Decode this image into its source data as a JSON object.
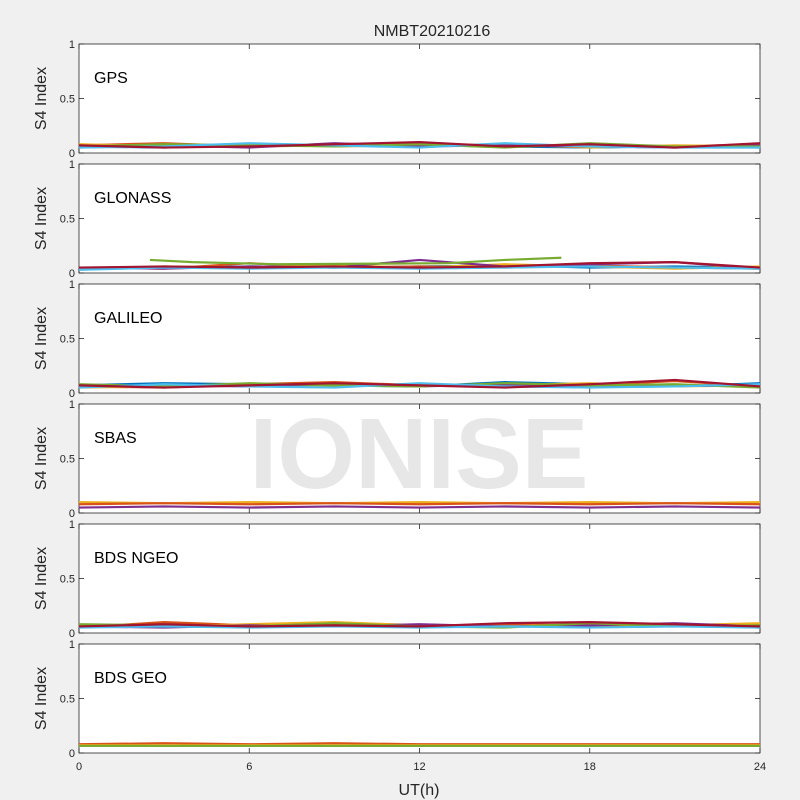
{
  "chart_data": {
    "type": "line",
    "title": "NMBT20210216",
    "xlabel": "UT(h)",
    "ylabel": "S4 Index",
    "xlim": [
      0,
      24
    ],
    "ylim": [
      0,
      1
    ],
    "xticks": [
      0,
      6,
      12,
      18,
      24
    ],
    "yticks": [
      0,
      0.5,
      1
    ],
    "xtick_labels": [
      "0",
      "6",
      "12",
      "18",
      "24"
    ],
    "ytick_labels": [
      "0",
      "0.5",
      "1"
    ],
    "grid": false,
    "watermark": "IONISE",
    "series_colors": [
      "#0072bd",
      "#d95319",
      "#edb120",
      "#7e2f8e",
      "#77ac30",
      "#4dbeee",
      "#a2142f"
    ],
    "panels": [
      {
        "label": "GPS",
        "series": [
          {
            "color": "#0072bd",
            "x": [
              0,
              3,
              6,
              9,
              12,
              15,
              18,
              21,
              24
            ],
            "values": [
              0.06,
              0.05,
              0.07,
              0.08,
              0.07,
              0.06,
              0.05,
              0.06,
              0.05
            ]
          },
          {
            "color": "#d95319",
            "x": [
              0,
              3,
              6,
              9,
              12,
              15,
              18,
              21,
              24
            ],
            "values": [
              0.07,
              0.09,
              0.06,
              0.07,
              0.09,
              0.06,
              0.07,
              0.06,
              0.08
            ]
          },
          {
            "color": "#edb120",
            "x": [
              0,
              3,
              6,
              9,
              12,
              15,
              18,
              21,
              24
            ],
            "values": [
              0.08,
              0.06,
              0.08,
              0.06,
              0.07,
              0.08,
              0.05,
              0.07,
              0.06
            ]
          },
          {
            "color": "#7e2f8e",
            "x": [
              0,
              3,
              6,
              9,
              12,
              15,
              18,
              21,
              24
            ],
            "values": [
              0.05,
              0.07,
              0.05,
              0.09,
              0.06,
              0.07,
              0.06,
              0.05,
              0.07
            ]
          },
          {
            "color": "#77ac30",
            "x": [
              0,
              3,
              6,
              9,
              12,
              15,
              18,
              21,
              24
            ],
            "values": [
              0.06,
              0.08,
              0.07,
              0.06,
              0.08,
              0.05,
              0.09,
              0.06,
              0.06
            ]
          },
          {
            "color": "#4dbeee",
            "x": [
              0,
              3,
              6,
              9,
              12,
              15,
              18,
              21,
              24
            ],
            "values": [
              0.05,
              0.06,
              0.09,
              0.07,
              0.05,
              0.09,
              0.06,
              0.05,
              0.05
            ]
          },
          {
            "color": "#a2142f",
            "x": [
              0,
              3,
              6,
              9,
              12,
              15,
              18,
              21,
              24
            ],
            "values": [
              0.07,
              0.05,
              0.06,
              0.08,
              0.1,
              0.06,
              0.08,
              0.05,
              0.09
            ]
          }
        ]
      },
      {
        "label": "GLONASS",
        "series": [
          {
            "color": "#0072bd",
            "x": [
              0,
              3,
              6,
              9,
              12,
              15,
              18,
              21,
              24
            ],
            "values": [
              0.04,
              0.05,
              0.06,
              0.05,
              0.06,
              0.07,
              0.05,
              0.06,
              0.05
            ]
          },
          {
            "color": "#d95319",
            "x": [
              0,
              3,
              6,
              9,
              12,
              15,
              18,
              21,
              24
            ],
            "values": [
              0.05,
              0.04,
              0.09,
              0.05,
              0.06,
              0.05,
              0.07,
              0.05,
              0.04
            ]
          },
          {
            "color": "#edb120",
            "x": [
              0,
              3,
              6,
              9,
              12,
              15,
              18,
              21,
              24
            ],
            "values": [
              0.03,
              0.06,
              0.05,
              0.07,
              0.05,
              0.08,
              0.06,
              0.04,
              0.06
            ]
          },
          {
            "color": "#7e2f8e",
            "x": [
              0,
              3,
              6,
              9,
              12,
              15,
              18,
              21,
              24
            ],
            "values": [
              0.05,
              0.04,
              0.06,
              0.05,
              0.12,
              0.06,
              0.08,
              0.1,
              0.04
            ]
          },
          {
            "color": "#77ac30",
            "x": [
              2.5,
              4,
              5.5,
              7,
              13,
              15,
              17
            ],
            "values": [
              0.12,
              0.1,
              0.09,
              0.08,
              0.09,
              0.12,
              0.14
            ]
          },
          {
            "color": "#4dbeee",
            "x": [
              0,
              3,
              6,
              9,
              12,
              15,
              18,
              21,
              24
            ],
            "values": [
              0.03,
              0.05,
              0.04,
              0.05,
              0.04,
              0.05,
              0.06,
              0.05,
              0.04
            ]
          },
          {
            "color": "#a2142f",
            "x": [
              0,
              3,
              6,
              9,
              12,
              15,
              18,
              21,
              24
            ],
            "values": [
              0.05,
              0.06,
              0.05,
              0.06,
              0.05,
              0.06,
              0.09,
              0.1,
              0.05
            ]
          }
        ]
      },
      {
        "label": "GALILEO",
        "series": [
          {
            "color": "#0072bd",
            "x": [
              0,
              3,
              6,
              9,
              12,
              15,
              18,
              21,
              24
            ],
            "values": [
              0.07,
              0.09,
              0.08,
              0.07,
              0.06,
              0.1,
              0.08,
              0.06,
              0.09
            ]
          },
          {
            "color": "#d95319",
            "x": [
              0,
              3,
              6,
              9,
              12,
              15,
              18,
              21,
              24
            ],
            "values": [
              0.06,
              0.05,
              0.08,
              0.1,
              0.07,
              0.06,
              0.07,
              0.11,
              0.06
            ]
          },
          {
            "color": "#edb120",
            "x": [
              0,
              3,
              6,
              9,
              12,
              15,
              18,
              21,
              24
            ],
            "values": [
              0.05,
              0.06,
              0.07,
              0.06,
              0.08,
              0.07,
              0.09,
              0.06,
              0.07
            ]
          },
          {
            "color": "#7e2f8e",
            "x": [
              0,
              3,
              6,
              9,
              12,
              15,
              18,
              21,
              24
            ],
            "values": [
              0.06,
              0.07,
              0.06,
              0.08,
              0.06,
              0.08,
              0.06,
              0.07,
              0.06
            ]
          },
          {
            "color": "#77ac30",
            "x": [
              0,
              3,
              6,
              9,
              12,
              15,
              18,
              21,
              24
            ],
            "values": [
              0.08,
              0.06,
              0.09,
              0.07,
              0.06,
              0.09,
              0.07,
              0.08,
              0.05
            ]
          },
          {
            "color": "#4dbeee",
            "x": [
              0,
              3,
              6,
              9,
              12,
              15,
              18,
              21,
              24
            ],
            "values": [
              0.05,
              0.08,
              0.06,
              0.05,
              0.09,
              0.06,
              0.05,
              0.06,
              0.08
            ]
          },
          {
            "color": "#a2142f",
            "x": [
              0,
              3,
              6,
              9,
              12,
              15,
              18,
              21,
              24
            ],
            "values": [
              0.07,
              0.05,
              0.07,
              0.09,
              0.07,
              0.05,
              0.08,
              0.12,
              0.06
            ]
          }
        ]
      },
      {
        "label": "SBAS",
        "series": [
          {
            "color": "#edb120",
            "x": [
              0,
              3,
              6,
              9,
              12,
              15,
              18,
              21,
              24
            ],
            "values": [
              0.1,
              0.09,
              0.1,
              0.09,
              0.1,
              0.09,
              0.1,
              0.09,
              0.1
            ]
          },
          {
            "color": "#d95319",
            "x": [
              0,
              3,
              6,
              9,
              12,
              15,
              18,
              21,
              24
            ],
            "values": [
              0.08,
              0.09,
              0.08,
              0.09,
              0.08,
              0.09,
              0.08,
              0.09,
              0.08
            ]
          },
          {
            "color": "#7e2f8e",
            "x": [
              0,
              3,
              6,
              9,
              12,
              15,
              18,
              21,
              24
            ],
            "values": [
              0.05,
              0.06,
              0.05,
              0.06,
              0.05,
              0.06,
              0.05,
              0.06,
              0.05
            ]
          }
        ]
      },
      {
        "label": "BDS NGEO",
        "series": [
          {
            "color": "#0072bd",
            "x": [
              0,
              3,
              6,
              9,
              12,
              15,
              18,
              21,
              24
            ],
            "values": [
              0.06,
              0.07,
              0.06,
              0.08,
              0.06,
              0.07,
              0.06,
              0.07,
              0.05
            ]
          },
          {
            "color": "#d95319",
            "x": [
              0,
              3,
              6,
              9,
              12,
              15,
              18,
              21,
              24
            ],
            "values": [
              0.05,
              0.1,
              0.07,
              0.09,
              0.06,
              0.08,
              0.07,
              0.06,
              0.08
            ]
          },
          {
            "color": "#edb120",
            "x": [
              0,
              3,
              6,
              9,
              12,
              15,
              18,
              21,
              24
            ],
            "values": [
              0.07,
              0.06,
              0.08,
              0.1,
              0.07,
              0.06,
              0.08,
              0.07,
              0.09
            ]
          },
          {
            "color": "#7e2f8e",
            "x": [
              0,
              3,
              6,
              9,
              12,
              15,
              18,
              21,
              24
            ],
            "values": [
              0.06,
              0.05,
              0.07,
              0.06,
              0.08,
              0.06,
              0.07,
              0.09,
              0.06
            ]
          },
          {
            "color": "#77ac30",
            "x": [
              0,
              3,
              6,
              9,
              12,
              15,
              18,
              21,
              24
            ],
            "values": [
              0.08,
              0.07,
              0.06,
              0.09,
              0.06,
              0.05,
              0.09,
              0.06,
              0.07
            ]
          },
          {
            "color": "#4dbeee",
            "x": [
              0,
              3,
              6,
              9,
              12,
              15,
              18,
              21,
              24
            ],
            "values": [
              0.05,
              0.06,
              0.05,
              0.06,
              0.05,
              0.06,
              0.05,
              0.06,
              0.05
            ]
          },
          {
            "color": "#a2142f",
            "x": [
              0,
              3,
              6,
              9,
              12,
              15,
              18,
              21,
              24
            ],
            "values": [
              0.06,
              0.08,
              0.06,
              0.07,
              0.06,
              0.09,
              0.1,
              0.08,
              0.06
            ]
          }
        ]
      },
      {
        "label": "BDS GEO",
        "series": [
          {
            "color": "#d95319",
            "x": [
              0,
              3,
              6,
              9,
              12,
              15,
              18,
              21,
              24
            ],
            "values": [
              0.08,
              0.09,
              0.08,
              0.09,
              0.08,
              0.08,
              0.08,
              0.08,
              0.08
            ]
          },
          {
            "color": "#edb120",
            "x": [
              0,
              3,
              6,
              9,
              12,
              15,
              18,
              21,
              24
            ],
            "values": [
              0.07,
              0.07,
              0.07,
              0.07,
              0.07,
              0.07,
              0.07,
              0.07,
              0.07
            ]
          },
          {
            "color": "#77ac30",
            "x": [
              0,
              3,
              6,
              9,
              12,
              15,
              18,
              21,
              24
            ],
            "values": [
              0.065,
              0.065,
              0.065,
              0.065,
              0.065,
              0.065,
              0.065,
              0.065,
              0.065
            ]
          }
        ]
      }
    ]
  }
}
